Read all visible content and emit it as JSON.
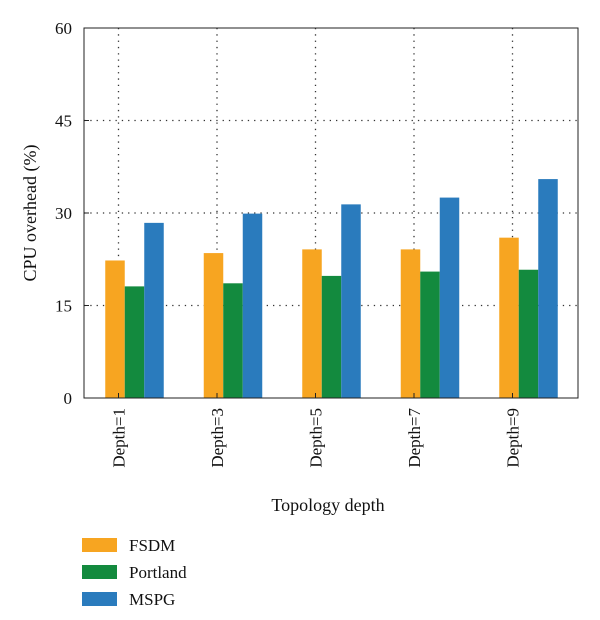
{
  "chart_data": {
    "type": "bar",
    "categories": [
      "Depth=1",
      "Depth=3",
      "Depth=5",
      "Depth=7",
      "Depth=9"
    ],
    "series": [
      {
        "name": "FSDM",
        "color": "#F7A521",
        "values": [
          22.3,
          23.5,
          24.1,
          24.1,
          26.0
        ]
      },
      {
        "name": "Portland",
        "color": "#138A3E",
        "values": [
          18.1,
          18.6,
          19.8,
          20.5,
          20.8
        ]
      },
      {
        "name": "MSPG",
        "color": "#2A7BBD",
        "values": [
          28.4,
          29.9,
          31.4,
          32.5,
          35.5
        ]
      }
    ],
    "title": "",
    "xlabel": "Topology depth",
    "ylabel": "CPU overhead (%)",
    "ylim": [
      0,
      60
    ],
    "yticks": [
      0,
      15,
      30,
      45,
      60
    ],
    "grid": true,
    "legend_position": "bottom-left"
  }
}
